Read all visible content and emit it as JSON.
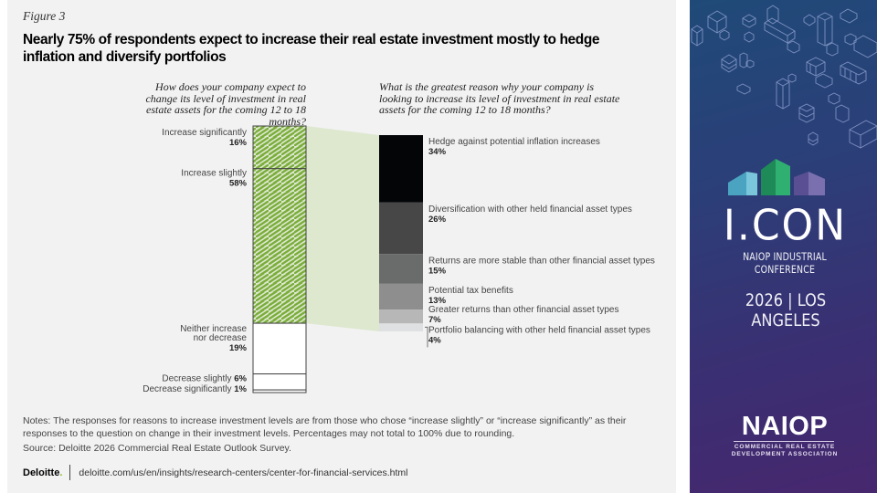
{
  "figure": {
    "label": "Figure 3",
    "title": "Nearly 75% of respondents expect to increase their real estate investment mostly to hedge inflation and diversify portfolios"
  },
  "chart_data": [
    {
      "type": "bar",
      "stacked": true,
      "orientation": "vertical",
      "title": "How does your company expect to change its level of investment in real estate assets for the coming 12 to 18 months?",
      "categories": [
        "Increase significantly",
        "Increase slightly",
        "Neither increase nor decrease",
        "Decrease slightly",
        "Decrease significantly"
      ],
      "values": [
        16,
        58,
        19,
        6,
        1
      ],
      "value_labels": [
        "16%",
        "58%",
        "19%",
        "6%",
        "1%"
      ],
      "unit": "%",
      "highlighted": [
        "Increase significantly",
        "Increase slightly"
      ],
      "highlight_color": "#7aad3a",
      "highlight_bg": "#dde8cf"
    },
    {
      "type": "bar",
      "stacked": true,
      "orientation": "vertical",
      "title": "What is the greatest reason why your company is looking to increase its level of investment in real estate assets for the coming 12 to 18 months?",
      "categories": [
        "Hedge against potential inflation increases",
        "Diversification with other held financial asset types",
        "Returns are more stable than other financial asset types",
        "Potential tax benefits",
        "Greater returns than other financial asset types",
        "Portfolio balancing with other held financial asset types"
      ],
      "values": [
        34,
        26,
        15,
        13,
        7,
        4
      ],
      "value_labels": [
        "34%",
        "26%",
        "15%",
        "13%",
        "7%",
        "4%"
      ],
      "unit": "%",
      "colors": [
        "#030506",
        "#474747",
        "#6a6b6b",
        "#8e8e8e",
        "#b7b7b7",
        "#dfe0e1"
      ]
    }
  ],
  "notes": "Notes: The responses for reasons to increase investment levels are from those who chose “increase slightly” or “increase significantly” as their responses to the question on change in their investment levels. Percentages may not total to 100% due to rounding.",
  "source": "Source: Deloitte 2026 Commercial Real Estate Outlook Survey.",
  "footer": {
    "logo": "Deloitte",
    "logo_dot": ".",
    "url": "deloitte.com/us/en/insights/research-centers/center-for-financial-services.html"
  },
  "banner": {
    "event": "I.CON",
    "subtitle": "NAIOP INDUSTRIAL CONFERENCE",
    "year_location": "2026 | LOS ANGELES",
    "org": "NAIOP",
    "org_tagline_1": "COMMERCIAL REAL ESTATE",
    "org_tagline_2": "DEVELOPMENT ASSOCIATION",
    "logo_colors": [
      "#4aa3c0",
      "#1e8a57",
      "#5a4f92"
    ]
  }
}
